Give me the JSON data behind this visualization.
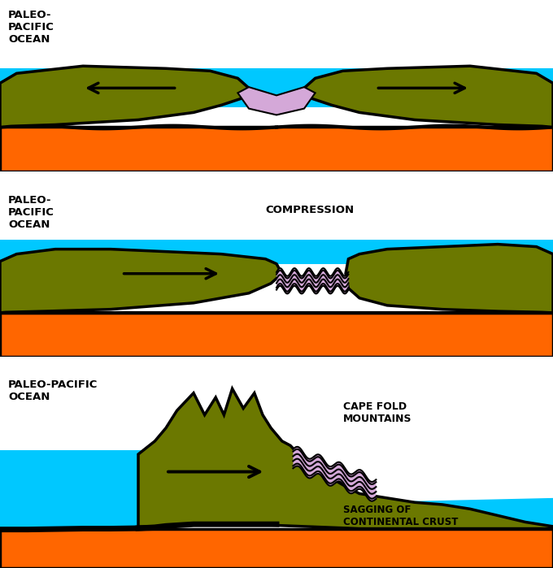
{
  "bg_color": "#ffffff",
  "ocean_color": "#00c8ff",
  "land_color": "#6b7800",
  "mantle_color": "#ff6600",
  "fold_color": "#d4a8d8",
  "outline_color": "#000000",
  "text_color": "#000000",
  "panel1_label": "PALEO-\nPACIFIC\nOCEAN",
  "panel2_label": "PALEO-\nPACIFIC\nOCEAN",
  "panel3_label": "PALEO-PACIFIC\nOCEAN",
  "compression_label": "COMPRESSION",
  "cape_fold_label": "CAPE FOLD\nMOUNTAINS",
  "sagging_label": "SAGGING OF\nCONTINENTAL CRUST"
}
